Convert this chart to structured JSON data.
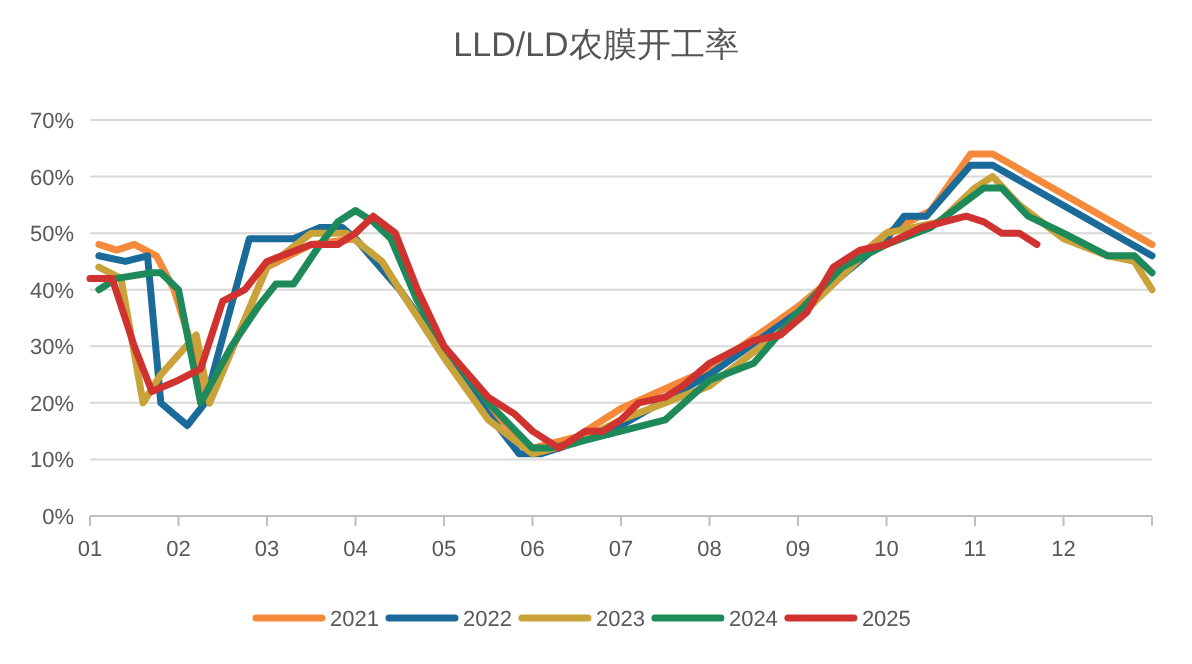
{
  "chart_data": {
    "type": "line",
    "title": "LLD/LD农膜开工率",
    "xlim": [
      1,
      13
    ],
    "xticks": [
      {
        "value": 1,
        "label": "01"
      },
      {
        "value": 2,
        "label": "02"
      },
      {
        "value": 3,
        "label": "03"
      },
      {
        "value": 4,
        "label": "04"
      },
      {
        "value": 5,
        "label": "05"
      },
      {
        "value": 6,
        "label": "06"
      },
      {
        "value": 7,
        "label": "07"
      },
      {
        "value": 8,
        "label": "08"
      },
      {
        "value": 9,
        "label": "09"
      },
      {
        "value": 10,
        "label": "10"
      },
      {
        "value": 11,
        "label": "11"
      },
      {
        "value": 12,
        "label": "12"
      },
      {
        "value": 13,
        "label": null
      }
    ],
    "ylim": [
      0,
      70
    ],
    "yticks": [
      {
        "value": 0,
        "label": "0%"
      },
      {
        "value": 10,
        "label": "10%"
      },
      {
        "value": 20,
        "label": "20%"
      },
      {
        "value": 30,
        "label": "30%"
      },
      {
        "value": 40,
        "label": "40%"
      },
      {
        "value": 50,
        "label": "50%"
      },
      {
        "value": 60,
        "label": "60%"
      },
      {
        "value": 70,
        "label": "70%"
      }
    ],
    "grid": "y",
    "legend": "bottom",
    "marker": "none",
    "line_style": "solid",
    "series": [
      {
        "name": "2021",
        "color": "#f58a3a",
        "x": [
          1.1,
          1.3,
          1.5,
          1.75,
          1.95,
          2.35,
          3,
          3.5,
          4,
          4.5,
          5,
          5.5,
          6,
          6.5,
          7,
          8,
          9,
          10,
          10.5,
          10.95,
          11.2,
          13
        ],
        "values": [
          48,
          47,
          48,
          46,
          40,
          20,
          44,
          48,
          49,
          40,
          29,
          19,
          12,
          14,
          19,
          26,
          37,
          50,
          54,
          64,
          64,
          48
        ]
      },
      {
        "name": "2022",
        "color": "#1a6b9a",
        "x": [
          1.1,
          1.4,
          1.65,
          1.8,
          2.1,
          2.3,
          2.8,
          3.3,
          3.6,
          3.85,
          4,
          4.5,
          5,
          5.5,
          5.85,
          6.1,
          6.5,
          7,
          8,
          9,
          10,
          10.2,
          10.45,
          10.95,
          11.2,
          13
        ],
        "values": [
          46,
          45,
          46,
          20,
          16,
          20,
          49,
          49,
          51,
          51,
          49,
          40,
          29,
          18,
          11,
          11,
          13,
          16,
          25,
          36,
          49,
          53,
          53,
          62,
          62,
          46
        ]
      },
      {
        "name": "2023",
        "color": "#c9a33a",
        "x": [
          1.1,
          1.35,
          1.6,
          1.8,
          2.2,
          2.35,
          3,
          3.5,
          3.9,
          4.3,
          4.5,
          5,
          5.5,
          6,
          6.5,
          7,
          8,
          9,
          10,
          10.6,
          11,
          11.2,
          11.5,
          12,
          12.5,
          12.8,
          13
        ],
        "values": [
          44,
          42,
          20,
          25,
          32,
          20,
          44,
          50,
          50,
          45,
          40,
          28,
          17,
          11,
          13,
          17,
          23,
          35,
          50,
          52,
          58,
          60,
          55,
          49,
          46,
          45,
          40
        ]
      },
      {
        "name": "2024",
        "color": "#1e8a5a",
        "x": [
          1.1,
          1.3,
          1.7,
          1.8,
          2,
          2.25,
          2.6,
          2.9,
          3.1,
          3.3,
          3.6,
          3.8,
          4,
          4.2,
          4.4,
          4.7,
          5,
          5.5,
          6,
          6.2,
          6.5,
          7,
          7.5,
          8,
          8.5,
          9,
          9.5,
          10,
          10.5,
          11.1,
          11.3,
          11.6,
          12,
          12.5,
          12.8,
          13
        ],
        "values": [
          40,
          42,
          43,
          43,
          40,
          20,
          30,
          37,
          41,
          41,
          48,
          52,
          54,
          52,
          49,
          38,
          30,
          20,
          12,
          12,
          13,
          15,
          17,
          24,
          27,
          36,
          44,
          48,
          51,
          58,
          58,
          53,
          50,
          46,
          46,
          43
        ]
      },
      {
        "name": "2025",
        "color": "#d0332f",
        "x": [
          1,
          1.25,
          1.5,
          1.7,
          2,
          2.25,
          2.5,
          2.75,
          3,
          3.5,
          3.8,
          4,
          4.2,
          4.45,
          4.7,
          5,
          5.5,
          5.8,
          6,
          6.3,
          6.6,
          6.8,
          7,
          7.2,
          7.5,
          7.7,
          8,
          8.5,
          8.8,
          9.1,
          9.4,
          9.7,
          10,
          10.4,
          10.9,
          11.1,
          11.3,
          11.5,
          11.7
        ],
        "values": [
          42,
          42,
          30,
          22,
          24,
          26,
          38,
          40,
          45,
          48,
          48,
          50,
          53,
          50,
          40,
          30,
          21,
          18,
          15,
          12,
          15,
          15,
          17,
          20,
          21,
          23,
          27,
          31,
          32,
          36,
          44,
          47,
          48,
          51,
          53,
          52,
          50,
          50,
          48
        ]
      }
    ]
  }
}
